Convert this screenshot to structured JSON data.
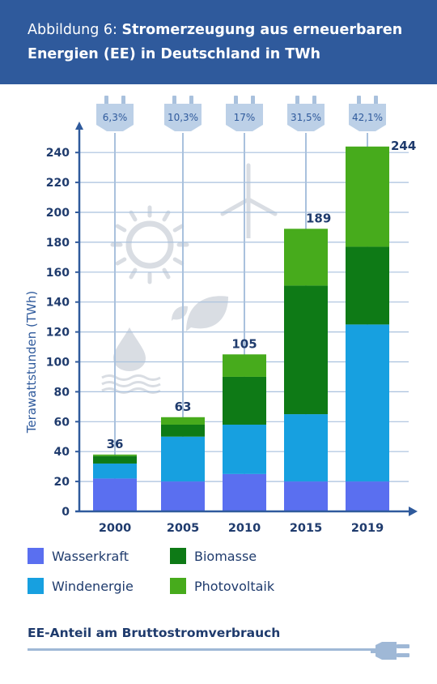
{
  "header": {
    "prefix": "Abbildung 6: ",
    "title": "Stromerzeugung aus erneuerbaren Energien (EE) in Deutschland in TWh"
  },
  "chart_data": {
    "type": "bar",
    "stacked": true,
    "categories": [
      "2000",
      "2005",
      "2010",
      "2015",
      "2019"
    ],
    "series": [
      {
        "name": "Wasserkraft",
        "color": "#5a6ff0",
        "values": [
          22,
          20,
          25,
          20,
          20
        ]
      },
      {
        "name": "Windenergie",
        "color": "#17a0e0",
        "values": [
          10,
          30,
          33,
          45,
          105
        ]
      },
      {
        "name": "Biomasse",
        "color": "#0e7a16",
        "values": [
          5,
          8,
          32,
          86,
          52
        ]
      },
      {
        "name": "Photovoltaik",
        "color": "#47ab1c",
        "values": [
          1,
          5,
          15,
          38,
          67
        ]
      }
    ],
    "totals": [
      "36",
      "63",
      "105",
      "189",
      "244"
    ],
    "shares": [
      "6,3%",
      "10,3%",
      "17%",
      "31,5%",
      "42,1%"
    ],
    "ylabel": "Terawattstunden (TWh)",
    "yticks": [
      0,
      20,
      40,
      60,
      80,
      100,
      120,
      140,
      160,
      180,
      200,
      220,
      240
    ],
    "ylim": [
      0,
      250
    ],
    "grid": true,
    "legend_position": "bottom"
  },
  "legend": [
    {
      "label": "Wasserkraft",
      "color": "#5a6ff0"
    },
    {
      "label": "Biomasse",
      "color": "#0e7a16"
    },
    {
      "label": "Windenergie",
      "color": "#17a0e0"
    },
    {
      "label": "Photovoltaik",
      "color": "#47ab1c"
    }
  ],
  "footer": {
    "label": "EE-Anteil am Bruttostromverbrauch"
  }
}
